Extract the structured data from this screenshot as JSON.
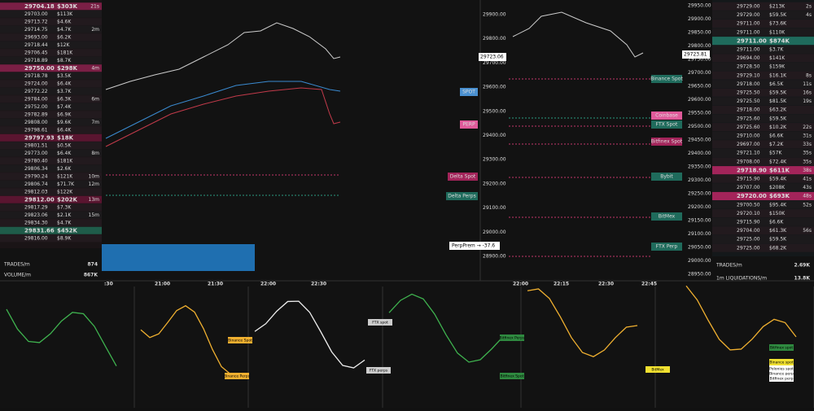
{
  "left_trades": [
    {
      "price": "29704.18",
      "size": "$303K",
      "time": "21s",
      "color": "#7a1f45"
    },
    {
      "price": "29703.00",
      "size": "$113K"
    },
    {
      "price": "29713.72",
      "size": "$4.6K"
    },
    {
      "price": "29714.75",
      "size": "$4.7K",
      "time": "2m"
    },
    {
      "price": "29693.00",
      "size": "$6.2K"
    },
    {
      "price": "29718.44",
      "size": "$12K"
    },
    {
      "price": "29706.45",
      "size": "$181K"
    },
    {
      "price": "29718.89",
      "size": "$8.7K"
    },
    {
      "price": "29750.00",
      "size": "$298K",
      "time": "4m",
      "color": "#7a1f45"
    },
    {
      "price": "29718.78",
      "size": "$3.5K"
    },
    {
      "price": "29724.00",
      "size": "$6.4K"
    },
    {
      "price": "29772.22",
      "size": "$3.7K"
    },
    {
      "price": "29784.00",
      "size": "$6.3K",
      "time": "6m"
    },
    {
      "price": "29752.00",
      "size": "$7.4K"
    },
    {
      "price": "29782.89",
      "size": "$6.9K"
    },
    {
      "price": "29808.00",
      "size": "$9.6K",
      "time": "7m"
    },
    {
      "price": "29798.61",
      "size": "$6.4K"
    },
    {
      "price": "29797.93",
      "size": "$18K",
      "color": "#5a1530"
    },
    {
      "price": "29801.51",
      "size": "$0.5K"
    },
    {
      "price": "29773.00",
      "size": "$6.4K",
      "time": "8m"
    },
    {
      "price": "29780.40",
      "size": "$181K"
    },
    {
      "price": "29806.34",
      "size": "$2.6K"
    },
    {
      "price": "29790.24",
      "size": "$121K",
      "time": "10m"
    },
    {
      "price": "29806.74",
      "size": "$71.7K",
      "time": "12m"
    },
    {
      "price": "29812.03",
      "size": "$122K"
    },
    {
      "price": "29812.00",
      "size": "$202K",
      "time": "13m",
      "color": "#5a1530"
    },
    {
      "price": "29817.29",
      "size": "$7.3K"
    },
    {
      "price": "29823.06",
      "size": "$2.1K",
      "time": "15m"
    },
    {
      "price": "29834.30",
      "size": "$4.7K"
    },
    {
      "price": "29831.66",
      "size": "$452K",
      "color": "#1f5c4a"
    },
    {
      "price": "29816.00",
      "size": "$8.9K"
    }
  ],
  "right_trades": [
    {
      "price": "29729.00",
      "size": "$213K",
      "time": "2s"
    },
    {
      "price": "29729.00",
      "size": "$59.5K",
      "time": "4s"
    },
    {
      "price": "29711.00",
      "size": "$73.6K"
    },
    {
      "price": "29711.00",
      "size": "$110K"
    },
    {
      "price": "29711.00",
      "size": "$874K",
      "color": "#1f6b5c"
    },
    {
      "price": "29711.00",
      "size": "$3.7K"
    },
    {
      "price": "29694.00",
      "size": "$141K"
    },
    {
      "price": "29728.50",
      "size": "$159K"
    },
    {
      "price": "29729.10",
      "size": "$16.1K",
      "time": "8s"
    },
    {
      "price": "29718.00",
      "size": "$6.5K",
      "time": "11s"
    },
    {
      "price": "29725.50",
      "size": "$59.5K",
      "time": "16s"
    },
    {
      "price": "29725.50",
      "size": "$81.5K",
      "time": "19s"
    },
    {
      "price": "29718.00",
      "size": "$63.2K"
    },
    {
      "price": "29725.60",
      "size": "$59.5K"
    },
    {
      "price": "29725.60",
      "size": "$10.2K",
      "time": "22s"
    },
    {
      "price": "29710.00",
      "size": "$6.6K",
      "time": "31s"
    },
    {
      "price": "29697.00",
      "size": "$7.2K",
      "time": "33s"
    },
    {
      "price": "29721.10",
      "size": "$57K",
      "time": "35s"
    },
    {
      "price": "29708.00",
      "size": "$72.4K",
      "time": "35s"
    },
    {
      "price": "29718.90",
      "size": "$611K",
      "time": "38s",
      "color": "#a3245a"
    },
    {
      "price": "29715.90",
      "size": "$59.4K",
      "time": "41s"
    },
    {
      "price": "29707.00",
      "size": "$208K",
      "time": "43s"
    },
    {
      "price": "29720.00",
      "size": "$693K",
      "time": "48s",
      "color": "#a3245a"
    },
    {
      "price": "29700.50",
      "size": "$95.4K",
      "time": "52s"
    },
    {
      "price": "29720.10",
      "size": "$150K"
    },
    {
      "price": "29715.90",
      "size": "$6.6K"
    },
    {
      "price": "29704.00",
      "size": "$61.3K",
      "time": "56s"
    },
    {
      "price": "29725.00",
      "size": "$59.5K"
    },
    {
      "price": "29725.00",
      "size": "$68.2K"
    }
  ],
  "left_stats": {
    "trades_label": "TRADES/m",
    "trades": "874",
    "volume_label": "VOLUME/m",
    "volume": "867K"
  },
  "right_stats": {
    "trades_label": "TRADES/m",
    "trades": "2.69K",
    "liq_label": "1m LIQUIDATIONS/m",
    "liq": "13.8K"
  },
  "mid_axis": [
    "29900.00",
    "29800.00",
    "29700.00",
    "29600.00",
    "29500.00",
    "29400.00",
    "29300.00",
    "29200.00",
    "29100.00",
    "29000.00",
    "28900.00"
  ],
  "right_axis": [
    "29950.00",
    "29900.00",
    "29850.00",
    "29800.00",
    "29750.00",
    "29700.00",
    "29650.00",
    "29600.00",
    "29550.00",
    "29500.00",
    "29450.00",
    "29400.00",
    "29350.00",
    "29300.00",
    "29250.00",
    "29200.00",
    "29150.00",
    "29100.00",
    "29050.00",
    "29000.00",
    "28950.00"
  ],
  "price_tags": {
    "mid": "29723.06",
    "right": "29723.81"
  },
  "exchange_labels": [
    "Binance Spot",
    "Coinbase",
    "FTX Spot",
    "Bitfinex Spot",
    "Bybit",
    "BitMex",
    "FTX Perp"
  ],
  "left_labels": [
    "SPOT",
    "PERP",
    "Delta Spot",
    "Delta Perps"
  ],
  "perp_prem": "PerpPrem → -37.6",
  "bottom_times": [
    ":30",
    "21:00",
    "21:30",
    "22:00",
    "22:30",
    "22:00",
    "22:15",
    "22:30",
    "22:45"
  ],
  "bottom_labels": [
    "Binance Spot",
    "Binance Perps",
    "FTX spot",
    "FTX perps",
    "Bitfinex Perps",
    "Bitfinex Spot",
    "BitMex",
    "Bitfinex spot",
    "Binance spot",
    "Polonies spot",
    "Binance perp",
    "Bitfinex perp"
  ]
}
